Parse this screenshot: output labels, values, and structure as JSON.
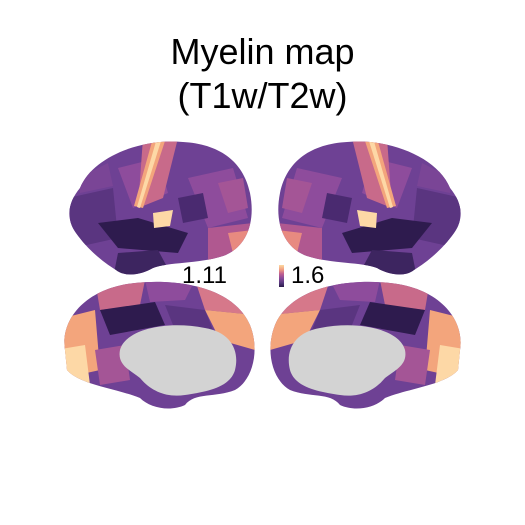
{
  "figure": {
    "title_line1": "Myelin map",
    "title_line2": "(T1w/T2w)",
    "scale": {
      "min_label": "1.11",
      "max_label": "1.6",
      "colormap_colors": [
        "#2a1a4a",
        "#5a3a80",
        "#8a4a9a",
        "#c06090",
        "#f2a080",
        "#fcd9a0"
      ]
    },
    "views": [
      {
        "hemisphere": "left",
        "view": "lateral"
      },
      {
        "hemisphere": "right",
        "view": "lateral"
      },
      {
        "hemisphere": "left",
        "view": "medial"
      },
      {
        "hemisphere": "right",
        "view": "medial"
      }
    ],
    "colors": {
      "dark": "#2e1b4e",
      "purple": "#6e4194",
      "mid": "#8e4c9c",
      "pink": "#c86a8a",
      "orange": "#f3a57c",
      "peach": "#fdd8a6",
      "wall": "#d3d3d3"
    }
  }
}
